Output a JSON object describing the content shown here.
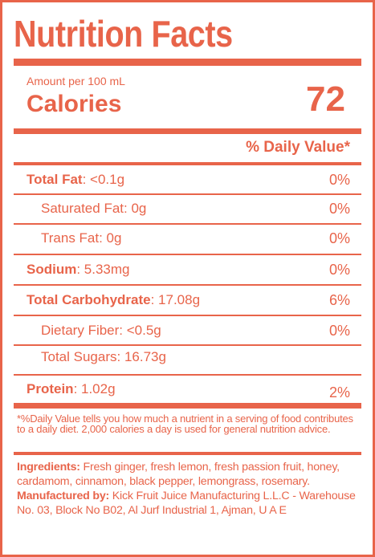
{
  "colors": {
    "accent": "#e8644a",
    "background": "#ffffff"
  },
  "title": "Nutrition Facts",
  "serving": {
    "amount_per": "Amount per 100 mL",
    "calories_label": "Calories",
    "calories_value": "72"
  },
  "dv_header": "% Daily Value*",
  "nutrients": {
    "total_fat": {
      "label": "Total Fat",
      "amount": ": <0.1g",
      "dv": "0%"
    },
    "saturated_fat": {
      "label": "Saturated Fat: 0g",
      "dv": "0%"
    },
    "trans_fat": {
      "label": "Trans Fat: 0g",
      "dv": "0%"
    },
    "sodium": {
      "label": "Sodium",
      "amount": ": 5.33mg",
      "dv": "0%"
    },
    "total_carb": {
      "label": "Total Carbohydrate",
      "amount": ": 17.08g",
      "dv": "6%"
    },
    "dietary_fiber": {
      "label": "Dietary Fiber: <0.5g",
      "dv": "0%"
    },
    "total_sugars": {
      "label": "Total Sugars: 16.73g"
    },
    "protein": {
      "label": "Protein",
      "amount": ": 1.02g",
      "dv": "2%"
    }
  },
  "footnote": "*%Daily Value tells you how much a nutrient in a serving of food contributes to a daily diet. 2,000 calories a day is used for general nutrition advice.",
  "ingredients": {
    "label": "Ingredients:",
    "text": " Fresh ginger, fresh lemon, fresh passion fruit, honey, cardamom, cinnamon, black pepper, lemongrass, rosemary."
  },
  "manufacturer": {
    "label": "Manufactured by:",
    "text": " Kick Fruit Juice Manufacturing L.L.C - Warehouse No. 03, Block No B02, Al Jurf Industrial 1, Ajman, U A E"
  }
}
